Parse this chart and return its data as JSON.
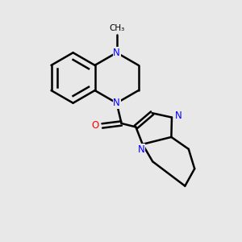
{
  "bg_color": "#e8e8e8",
  "bond_color": "#000000",
  "n_color": "#0000ff",
  "o_color": "#ff0000",
  "line_width": 1.8,
  "figsize": [
    3.0,
    3.0
  ],
  "dpi": 100,
  "xlim": [
    0,
    10
  ],
  "ylim": [
    0,
    10
  ]
}
